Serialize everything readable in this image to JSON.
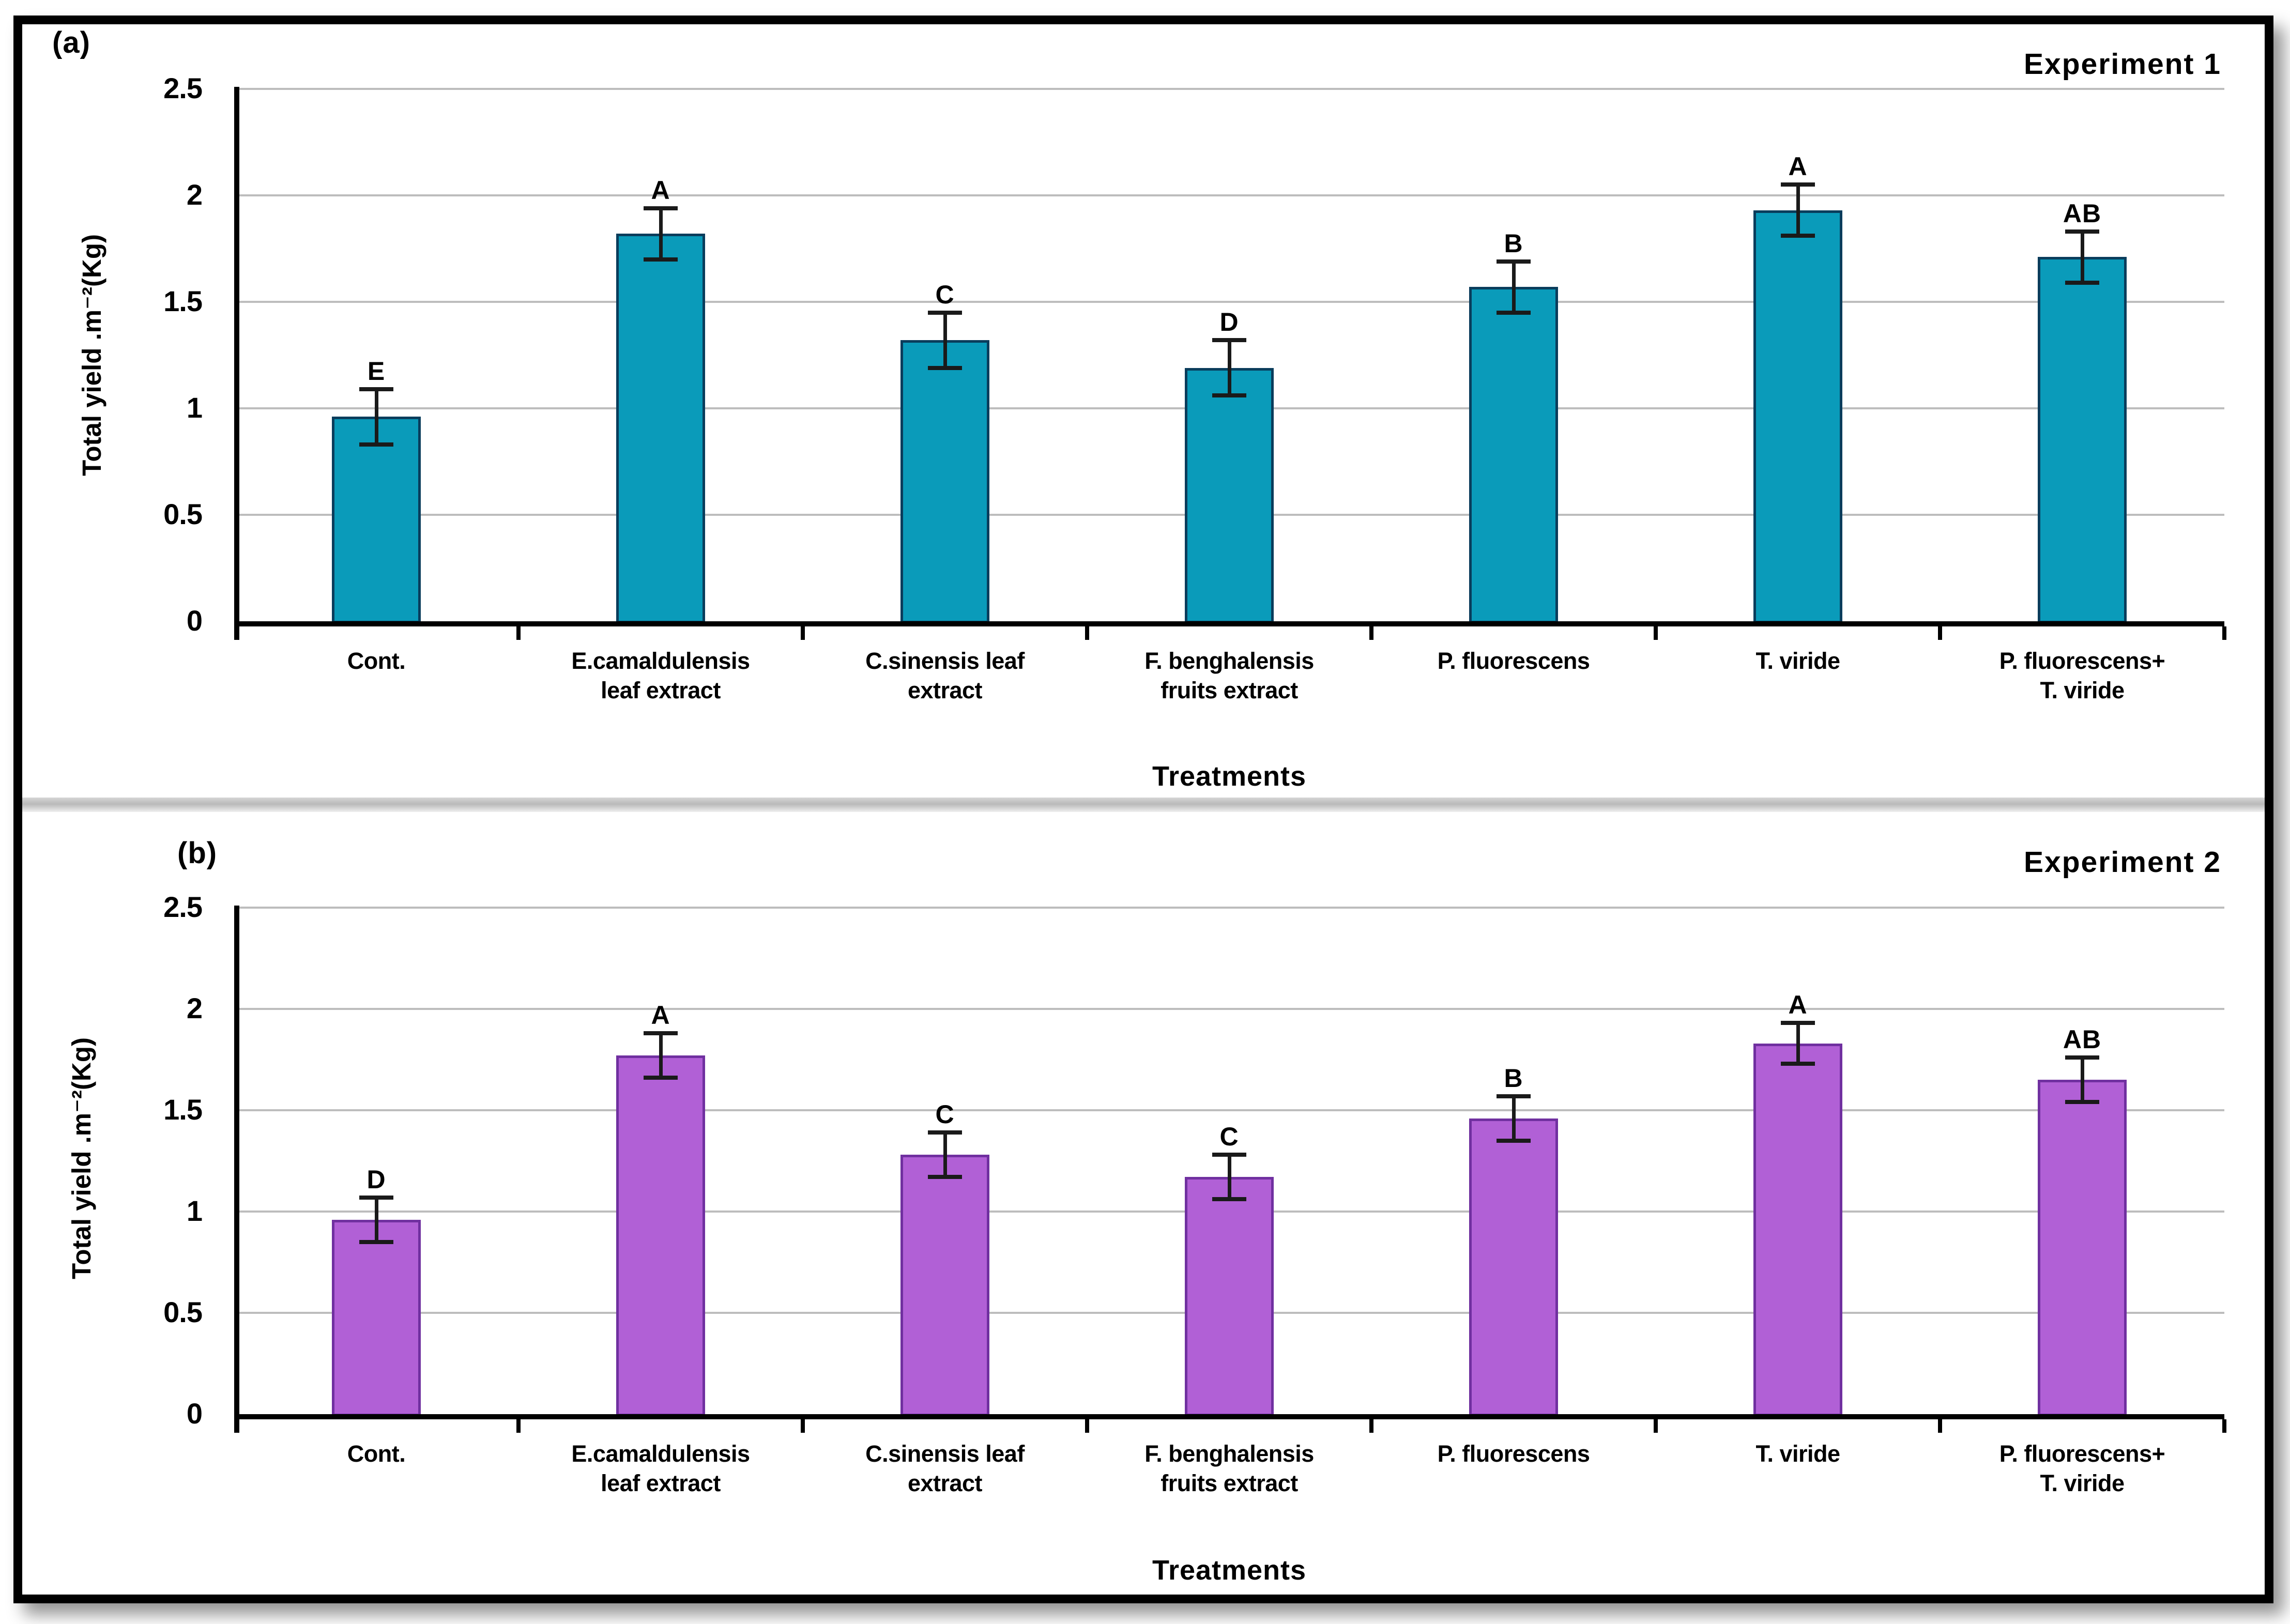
{
  "figure": {
    "description": "Two stacked bar charts comparing total squash yield per treatment",
    "frame_color": "#000000",
    "gridline_color": "#bdbdbd",
    "background": "#ffffff"
  },
  "chart_data": [
    {
      "type": "bar",
      "panel_label": "(a)",
      "title": "Experiment 1",
      "ylabel": "Total yield .m⁻²(Kg)",
      "xlabel": "Treatments",
      "ylim": [
        0,
        2.5
      ],
      "ytick_step": 0.5,
      "ytick_labels": [
        "2.5",
        "2",
        "1.5",
        "1",
        "0.5",
        "0"
      ],
      "grid": true,
      "legend": "none",
      "bar_color": "#0a9bba",
      "bar_border_color": "#0a3d5c",
      "error_bar_color": "#1a1a1a",
      "categories": [
        "Cont.",
        "E.camaldulensis\nleaf extract",
        "C.sinensis leaf\nextract",
        "F. benghalensis\nfruits extract",
        "P. fluorescens",
        "T. viride",
        "P. fluorescens+\nT. viride"
      ],
      "values": [
        0.96,
        1.82,
        1.32,
        1.19,
        1.57,
        1.93,
        1.71
      ],
      "errors": [
        0.13,
        0.12,
        0.13,
        0.13,
        0.12,
        0.12,
        0.12
      ],
      "letters": [
        "E",
        "A",
        "C",
        "D",
        "B",
        "A",
        "AB"
      ]
    },
    {
      "type": "bar",
      "panel_label": "(b)",
      "title": "Experiment 2",
      "ylabel": "Total yield .m⁻²(Kg)",
      "xlabel": "Treatments",
      "ylim": [
        0,
        2.5
      ],
      "ytick_step": 0.5,
      "ytick_labels": [
        "2.5",
        "2",
        "1.5",
        "1",
        "0.5",
        "0"
      ],
      "grid": true,
      "legend": "none",
      "bar_color": "#b160d6",
      "bar_border_color": "#7030a0",
      "error_bar_color": "#1a1a1a",
      "categories": [
        "Cont.",
        "E.camaldulensis\nleaf extract",
        "C.sinensis leaf\nextract",
        "F. benghalensis\nfruits extract",
        "P. fluorescens",
        "T. viride",
        "P. fluorescens+\nT. viride"
      ],
      "values": [
        0.96,
        1.77,
        1.28,
        1.17,
        1.46,
        1.83,
        1.65
      ],
      "errors": [
        0.11,
        0.11,
        0.11,
        0.11,
        0.11,
        0.1,
        0.11
      ],
      "letters": [
        "D",
        "A",
        "C",
        "C",
        "B",
        "A",
        "AB"
      ]
    }
  ]
}
